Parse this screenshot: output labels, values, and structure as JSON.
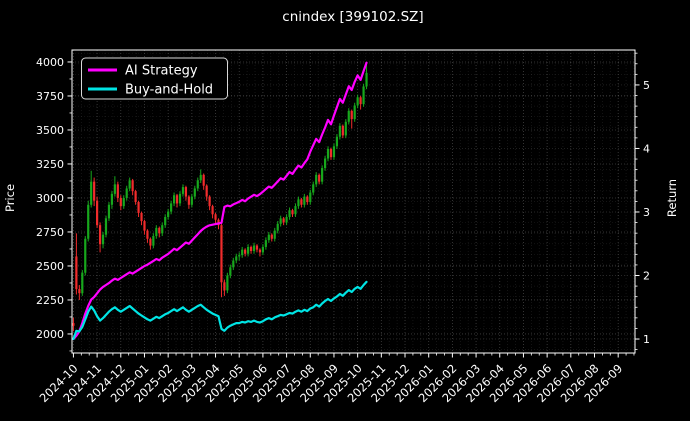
{
  "chart_data": {
    "type": "candlestick+line",
    "title": "cnindex [399102.SZ]",
    "background": "#000000",
    "text_color": "#ffffff",
    "grid": true,
    "left_axis": {
      "label": "Price",
      "ticks": [
        2000,
        2250,
        2500,
        2750,
        3000,
        3250,
        3500,
        3750,
        4000
      ],
      "range": [
        1860,
        4088
      ]
    },
    "right_axis": {
      "label": "Return",
      "ticks": [
        1,
        2,
        3,
        4,
        5
      ],
      "range": [
        0.78,
        5.55
      ]
    },
    "x_axis": {
      "tick_labels": [
        "2024-10",
        "2024-11",
        "2024-12",
        "2025-01",
        "2025-02",
        "2025-03",
        "2025-04",
        "2025-05",
        "2025-06",
        "2025-07",
        "2025-08",
        "2025-09",
        "2025-10",
        "2025-11",
        "2025-12",
        "2026-01",
        "2026-02",
        "2026-03",
        "2026-04",
        "2026-05",
        "2026-06",
        "2026-07",
        "2026-08",
        "2026-09"
      ],
      "range_months": [
        -0.06,
        23.71
      ]
    },
    "legend": {
      "position": "upper left",
      "items": [
        {
          "label": "AI Strategy",
          "color": "#ff00ff"
        },
        {
          "label": "Buy-and-Hold",
          "color": "#00e5e5"
        }
      ]
    },
    "candles": {
      "up_color": "#17a81c",
      "down_color": "#f12c2c",
      "interval_months": 0.125,
      "start_label": "2024-10",
      "end_label": "2025-10",
      "ohlc": [
        [
          2080,
          2120,
          2020,
          2060
        ],
        [
          2570,
          2740,
          2290,
          2330
        ],
        [
          2330,
          2360,
          2250,
          2300
        ],
        [
          2300,
          2470,
          2280,
          2450
        ],
        [
          2450,
          2720,
          2430,
          2700
        ],
        [
          2700,
          2980,
          2680,
          2950
        ],
        [
          2950,
          3200,
          2930,
          3120
        ],
        [
          3120,
          3150,
          2940,
          2980
        ],
        [
          2980,
          3010,
          2780,
          2800
        ],
        [
          2800,
          2820,
          2600,
          2660
        ],
        [
          2660,
          2750,
          2630,
          2730
        ],
        [
          2730,
          2870,
          2710,
          2850
        ],
        [
          2850,
          2970,
          2830,
          2950
        ],
        [
          2950,
          3050,
          2920,
          3030
        ],
        [
          3030,
          3160,
          3010,
          3100
        ],
        [
          3100,
          3120,
          2970,
          3000
        ],
        [
          3000,
          3020,
          2910,
          2940
        ],
        [
          2940,
          3020,
          2920,
          3000
        ],
        [
          3000,
          3090,
          2980,
          3070
        ],
        [
          3070,
          3150,
          3050,
          3130
        ],
        [
          3130,
          3140,
          3020,
          3050
        ],
        [
          3050,
          3060,
          2950,
          2970
        ],
        [
          2970,
          2980,
          2860,
          2890
        ],
        [
          2890,
          2900,
          2800,
          2830
        ],
        [
          2830,
          2840,
          2730,
          2760
        ],
        [
          2760,
          2770,
          2670,
          2700
        ],
        [
          2700,
          2710,
          2620,
          2650
        ],
        [
          2650,
          2740,
          2630,
          2720
        ],
        [
          2720,
          2800,
          2700,
          2780
        ],
        [
          2780,
          2790,
          2710,
          2740
        ],
        [
          2740,
          2820,
          2720,
          2800
        ],
        [
          2800,
          2880,
          2780,
          2860
        ],
        [
          2860,
          2920,
          2840,
          2900
        ],
        [
          2900,
          2980,
          2880,
          2960
        ],
        [
          2960,
          3040,
          2940,
          3020
        ],
        [
          3020,
          3030,
          2930,
          2960
        ],
        [
          2960,
          3050,
          2940,
          3030
        ],
        [
          3030,
          3100,
          3010,
          3080
        ],
        [
          3080,
          3090,
          2980,
          3010
        ],
        [
          3010,
          3020,
          2920,
          2950
        ],
        [
          2950,
          3030,
          2930,
          3010
        ],
        [
          3010,
          3090,
          2990,
          3070
        ],
        [
          3070,
          3150,
          3050,
          3130
        ],
        [
          3130,
          3210,
          3110,
          3170
        ],
        [
          3170,
          3180,
          3060,
          3090
        ],
        [
          3090,
          3100,
          2980,
          3010
        ],
        [
          3010,
          3020,
          2910,
          2940
        ],
        [
          2940,
          2950,
          2850,
          2880
        ],
        [
          2880,
          2890,
          2810,
          2840
        ],
        [
          2840,
          2850,
          2770,
          2800
        ],
        [
          2800,
          2810,
          2270,
          2380
        ],
        [
          2380,
          2400,
          2280,
          2320
        ],
        [
          2320,
          2450,
          2300,
          2430
        ],
        [
          2430,
          2510,
          2410,
          2490
        ],
        [
          2490,
          2560,
          2470,
          2540
        ],
        [
          2540,
          2590,
          2520,
          2570
        ],
        [
          2570,
          2600,
          2540,
          2580
        ],
        [
          2580,
          2640,
          2560,
          2620
        ],
        [
          2620,
          2630,
          2570,
          2590
        ],
        [
          2590,
          2660,
          2570,
          2640
        ],
        [
          2640,
          2650,
          2590,
          2610
        ],
        [
          2610,
          2670,
          2590,
          2650
        ],
        [
          2650,
          2660,
          2600,
          2620
        ],
        [
          2620,
          2630,
          2570,
          2600
        ],
        [
          2600,
          2660,
          2580,
          2640
        ],
        [
          2640,
          2710,
          2620,
          2690
        ],
        [
          2690,
          2750,
          2670,
          2730
        ],
        [
          2730,
          2740,
          2680,
          2700
        ],
        [
          2700,
          2780,
          2680,
          2760
        ],
        [
          2760,
          2830,
          2740,
          2810
        ],
        [
          2810,
          2870,
          2790,
          2850
        ],
        [
          2850,
          2860,
          2800,
          2820
        ],
        [
          2820,
          2880,
          2800,
          2860
        ],
        [
          2860,
          2930,
          2840,
          2910
        ],
        [
          2910,
          2920,
          2860,
          2880
        ],
        [
          2880,
          2960,
          2860,
          2940
        ],
        [
          2940,
          3010,
          2920,
          2990
        ],
        [
          2990,
          3000,
          2930,
          2950
        ],
        [
          2950,
          3030,
          2930,
          3010
        ],
        [
          3010,
          3020,
          2950,
          2970
        ],
        [
          2970,
          3060,
          2950,
          3040
        ],
        [
          3040,
          3120,
          3020,
          3100
        ],
        [
          3100,
          3190,
          3080,
          3170
        ],
        [
          3170,
          3180,
          3100,
          3120
        ],
        [
          3120,
          3240,
          3100,
          3220
        ],
        [
          3220,
          3310,
          3200,
          3290
        ],
        [
          3290,
          3380,
          3270,
          3360
        ],
        [
          3360,
          3370,
          3280,
          3300
        ],
        [
          3300,
          3400,
          3280,
          3380
        ],
        [
          3380,
          3470,
          3360,
          3450
        ],
        [
          3450,
          3550,
          3430,
          3530
        ],
        [
          3530,
          3540,
          3440,
          3460
        ],
        [
          3460,
          3580,
          3440,
          3560
        ],
        [
          3560,
          3660,
          3540,
          3640
        ],
        [
          3640,
          3650,
          3510,
          3580
        ],
        [
          3580,
          3700,
          3560,
          3680
        ],
        [
          3680,
          3760,
          3660,
          3740
        ],
        [
          3740,
          3750,
          3650,
          3690
        ],
        [
          3690,
          3840,
          3670,
          3820
        ],
        [
          3820,
          3990,
          3800,
          3920
        ]
      ]
    },
    "series": [
      {
        "name": "AI Strategy",
        "axis": "right",
        "color": "#ff00ff",
        "values": [
          1.0,
          1.05,
          1.12,
          1.25,
          1.4,
          1.52,
          1.62,
          1.66,
          1.72,
          1.78,
          1.82,
          1.85,
          1.88,
          1.92,
          1.95,
          1.93,
          1.96,
          1.99,
          2.02,
          2.05,
          2.03,
          2.06,
          2.09,
          2.12,
          2.15,
          2.17,
          2.2,
          2.23,
          2.26,
          2.24,
          2.28,
          2.31,
          2.34,
          2.38,
          2.42,
          2.4,
          2.44,
          2.48,
          2.52,
          2.5,
          2.55,
          2.6,
          2.65,
          2.7,
          2.74,
          2.77,
          2.79,
          2.8,
          2.81,
          2.82,
          2.83,
          3.08,
          3.1,
          3.09,
          3.12,
          3.14,
          3.16,
          3.19,
          3.17,
          3.21,
          3.24,
          3.27,
          3.25,
          3.28,
          3.32,
          3.36,
          3.4,
          3.38,
          3.43,
          3.48,
          3.53,
          3.51,
          3.57,
          3.63,
          3.6,
          3.67,
          3.73,
          3.7,
          3.77,
          3.83,
          3.95,
          4.05,
          4.15,
          4.1,
          4.22,
          4.33,
          4.45,
          4.38,
          4.52,
          4.65,
          4.78,
          4.72,
          4.85,
          4.98,
          4.92,
          5.05,
          5.15,
          5.08,
          5.22,
          5.35
        ]
      },
      {
        "name": "Buy-and-Hold",
        "axis": "right",
        "color": "#00e5e5",
        "values": [
          1.0,
          1.13,
          1.12,
          1.19,
          1.31,
          1.43,
          1.51,
          1.45,
          1.36,
          1.29,
          1.33,
          1.38,
          1.43,
          1.47,
          1.5,
          1.46,
          1.43,
          1.46,
          1.49,
          1.52,
          1.48,
          1.44,
          1.4,
          1.37,
          1.34,
          1.31,
          1.29,
          1.32,
          1.35,
          1.33,
          1.36,
          1.39,
          1.41,
          1.44,
          1.47,
          1.44,
          1.47,
          1.5,
          1.46,
          1.43,
          1.46,
          1.49,
          1.52,
          1.54,
          1.5,
          1.46,
          1.43,
          1.4,
          1.38,
          1.36,
          1.16,
          1.13,
          1.18,
          1.21,
          1.23,
          1.25,
          1.25,
          1.27,
          1.26,
          1.28,
          1.27,
          1.29,
          1.27,
          1.26,
          1.28,
          1.31,
          1.33,
          1.31,
          1.34,
          1.36,
          1.38,
          1.37,
          1.39,
          1.41,
          1.4,
          1.43,
          1.45,
          1.43,
          1.46,
          1.44,
          1.48,
          1.5,
          1.54,
          1.51,
          1.56,
          1.6,
          1.63,
          1.6,
          1.64,
          1.67,
          1.71,
          1.68,
          1.73,
          1.77,
          1.74,
          1.79,
          1.82,
          1.79,
          1.85,
          1.9
        ]
      }
    ]
  }
}
